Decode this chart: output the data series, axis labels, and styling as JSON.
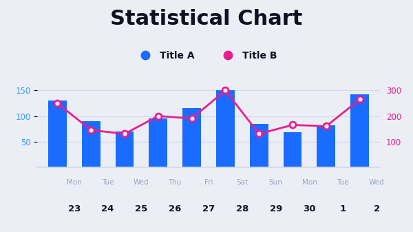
{
  "title": "Statistical Chart",
  "title_fontsize": 22,
  "title_fontweight": "black",
  "background_color": "#eceef5",
  "plot_bg_color": "#eceef5",
  "categories_day": [
    "Mon",
    "Tue",
    "Wed",
    "Thu",
    "Fri",
    "Sat",
    "Sun",
    "Mon",
    "Tue",
    "Wed"
  ],
  "categories_num": [
    "23",
    "24",
    "25",
    "26",
    "27",
    "28",
    "29",
    "30",
    "1",
    "2"
  ],
  "bar_values": [
    130,
    90,
    70,
    95,
    115,
    150,
    85,
    68,
    82,
    143
  ],
  "line_values": [
    250,
    145,
    130,
    200,
    190,
    300,
    130,
    165,
    160,
    265
  ],
  "bar_color": "#1a6bff",
  "line_color": "#e91e8c",
  "line_marker_face": "#eceef5",
  "left_axis_color": "#3399ff",
  "right_axis_color": "#e91e8c",
  "left_ylim": [
    0,
    200
  ],
  "right_ylim": [
    0,
    400
  ],
  "left_yticks": [
    50,
    100,
    150
  ],
  "right_yticks": [
    100,
    200,
    300
  ],
  "grid_color": "#d4d8e8",
  "legend_label_a": "Title A",
  "legend_label_b": "Title B",
  "day_label_color": "#9ba5c0",
  "num_label_color": "#111122",
  "num_label_fontweight": "bold",
  "day_label_fontsize": 7.5,
  "num_label_fontsize": 9.5,
  "legend_fontsize": 10,
  "title_color": "#111122",
  "bar_width": 0.55
}
